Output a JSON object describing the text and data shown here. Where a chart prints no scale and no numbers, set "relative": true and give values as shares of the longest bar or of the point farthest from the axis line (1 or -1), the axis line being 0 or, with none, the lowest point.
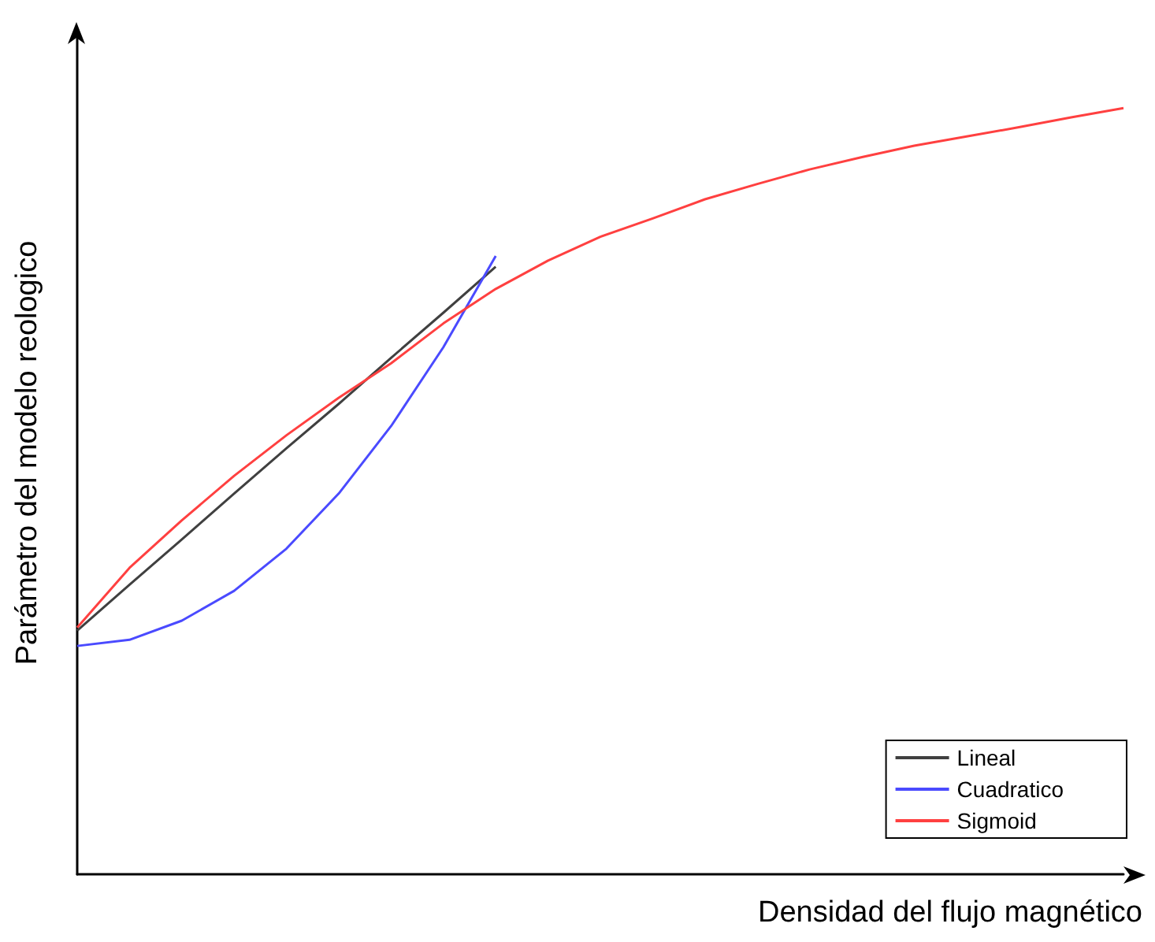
{
  "chart_data": {
    "type": "line",
    "relative": true,
    "xlabel": "Densidad del flujo magnético",
    "ylabel": "Parámetro del modelo reologico",
    "categories": [
      null,
      null,
      null,
      null,
      null,
      null,
      null,
      null,
      null,
      null,
      null,
      null,
      null,
      null,
      null,
      null,
      null,
      null,
      null,
      null,
      null
    ],
    "series": [
      {
        "name": "Lineal",
        "color": "#404040",
        "values": [
          0.318,
          0.378,
          0.437,
          0.497,
          0.556,
          0.614,
          0.674,
          0.733,
          0.793,
          null,
          null,
          null,
          null,
          null,
          null,
          null,
          null,
          null,
          null,
          null,
          null
        ]
      },
      {
        "name": "Cuadratico",
        "color": "#4a4aff",
        "values": [
          0.298,
          0.306,
          0.331,
          0.37,
          0.425,
          0.497,
          0.585,
          0.688,
          0.807,
          null,
          null,
          null,
          null,
          null,
          null,
          null,
          null,
          null,
          null,
          null,
          null
        ]
      },
      {
        "name": "Sigmoid",
        "color": "#ff4040",
        "values": [
          0.322,
          0.4,
          0.462,
          0.52,
          0.573,
          0.622,
          0.667,
          0.719,
          0.764,
          0.801,
          0.832,
          0.856,
          0.881,
          0.901,
          0.92,
          0.936,
          0.951,
          0.963,
          0.975,
          0.988,
          1
        ]
      }
    ],
    "legend": "bottom right",
    "grid": false,
    "marker": "none",
    "line_style": "solid"
  }
}
